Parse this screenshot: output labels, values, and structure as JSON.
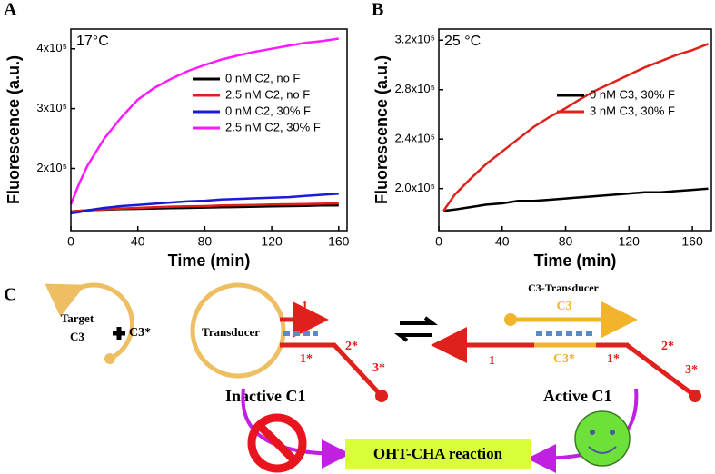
{
  "chart_data": [
    {
      "type": "line",
      "panel_label": "A",
      "annotation": "17°C",
      "xlabel": "Time (min)",
      "ylabel": "Fluorescence (a.u.)",
      "x": [
        0,
        5,
        10,
        20,
        30,
        40,
        50,
        60,
        70,
        80,
        90,
        100,
        110,
        120,
        130,
        140,
        150,
        160
      ],
      "xlim": [
        0,
        165
      ],
      "xticks": [
        0,
        40,
        80,
        120,
        160
      ],
      "ylim": [
        96000,
        433000
      ],
      "yticks": [
        {
          "value": 200000,
          "label": "2x10⁵"
        },
        {
          "value": 300000,
          "label": "3x10⁵"
        },
        {
          "value": 400000,
          "label": "4x10⁵"
        }
      ],
      "legend": "right",
      "series": [
        {
          "name": "0 nM C2, no F",
          "color": "#000000",
          "values": [
            128000,
            129000,
            130000,
            131000,
            132000,
            132500,
            133000,
            133500,
            134000,
            134500,
            135000,
            135500,
            136000,
            136500,
            137000,
            137500,
            138000,
            138000
          ]
        },
        {
          "name": "2.5 nM C2, no F",
          "color": "#e0201b",
          "values": [
            128000,
            129000,
            130000,
            131500,
            133000,
            134000,
            135000,
            136000,
            136500,
            137000,
            138000,
            138500,
            139000,
            139500,
            140000,
            140500,
            141000,
            141500
          ]
        },
        {
          "name": "0 nM C2, 30% F",
          "color": "#1a1ad8",
          "values": [
            125000,
            127000,
            130000,
            134000,
            137000,
            139000,
            141000,
            143000,
            145000,
            146000,
            148000,
            149000,
            150000,
            151000,
            152000,
            154000,
            156000,
            158000
          ]
        },
        {
          "name": "2.5 nM C2, 30% F",
          "color": "#ff1aff",
          "values": [
            140000,
            175000,
            205000,
            250000,
            285000,
            315000,
            335000,
            350000,
            363000,
            373000,
            382000,
            389000,
            395000,
            400000,
            405000,
            410000,
            413000,
            417000
          ]
        }
      ]
    },
    {
      "type": "line",
      "panel_label": "B",
      "annotation": "25 °C",
      "xlabel": "Time (min)",
      "ylabel": "Fluorescence (a.u.)",
      "x": [
        3,
        10,
        20,
        30,
        40,
        50,
        60,
        70,
        80,
        90,
        100,
        110,
        120,
        130,
        140,
        150,
        160,
        170
      ],
      "xlim": [
        0,
        172
      ],
      "xticks": [
        0,
        40,
        80,
        120,
        160
      ],
      "ylim": [
        166000,
        329000
      ],
      "yticks": [
        {
          "value": 200000,
          "label": "2.0x10⁵"
        },
        {
          "value": 240000,
          "label": "2.4x10⁵"
        },
        {
          "value": 280000,
          "label": "2.8x10⁵"
        },
        {
          "value": 320000,
          "label": "3.2x10⁵"
        }
      ],
      "legend": "right",
      "series": [
        {
          "name": "0 nM C3, 30% F",
          "color": "#000000",
          "values": [
            182000,
            183000,
            185000,
            187000,
            188000,
            190000,
            190000,
            191000,
            192000,
            193000,
            194000,
            195000,
            196000,
            197000,
            197000,
            198000,
            199000,
            200000
          ]
        },
        {
          "name": "3 nM C3, 30% F",
          "color": "#e0201b",
          "values": [
            182000,
            195000,
            208000,
            220000,
            230000,
            240000,
            250000,
            258000,
            265000,
            273000,
            280000,
            286000,
            292000,
            298000,
            303000,
            308000,
            312000,
            317000
          ]
        }
      ]
    }
  ],
  "diagram": {
    "panel_label": "C",
    "target": [
      "Target",
      "C3"
    ],
    "c3_star": "C3*",
    "transducer": "Transducer",
    "inactive_strands": [
      "1",
      "1*",
      "2*",
      "3*"
    ],
    "inactive_label": "Inactive C1",
    "complex_title": "C3-Transducer",
    "complex_c3": "C3",
    "complex_c3_star": "C3*",
    "active_strands": [
      "1",
      "1*",
      "2*",
      "3*"
    ],
    "active_label": "Active C1",
    "reaction": "OHT-CHA reaction"
  }
}
